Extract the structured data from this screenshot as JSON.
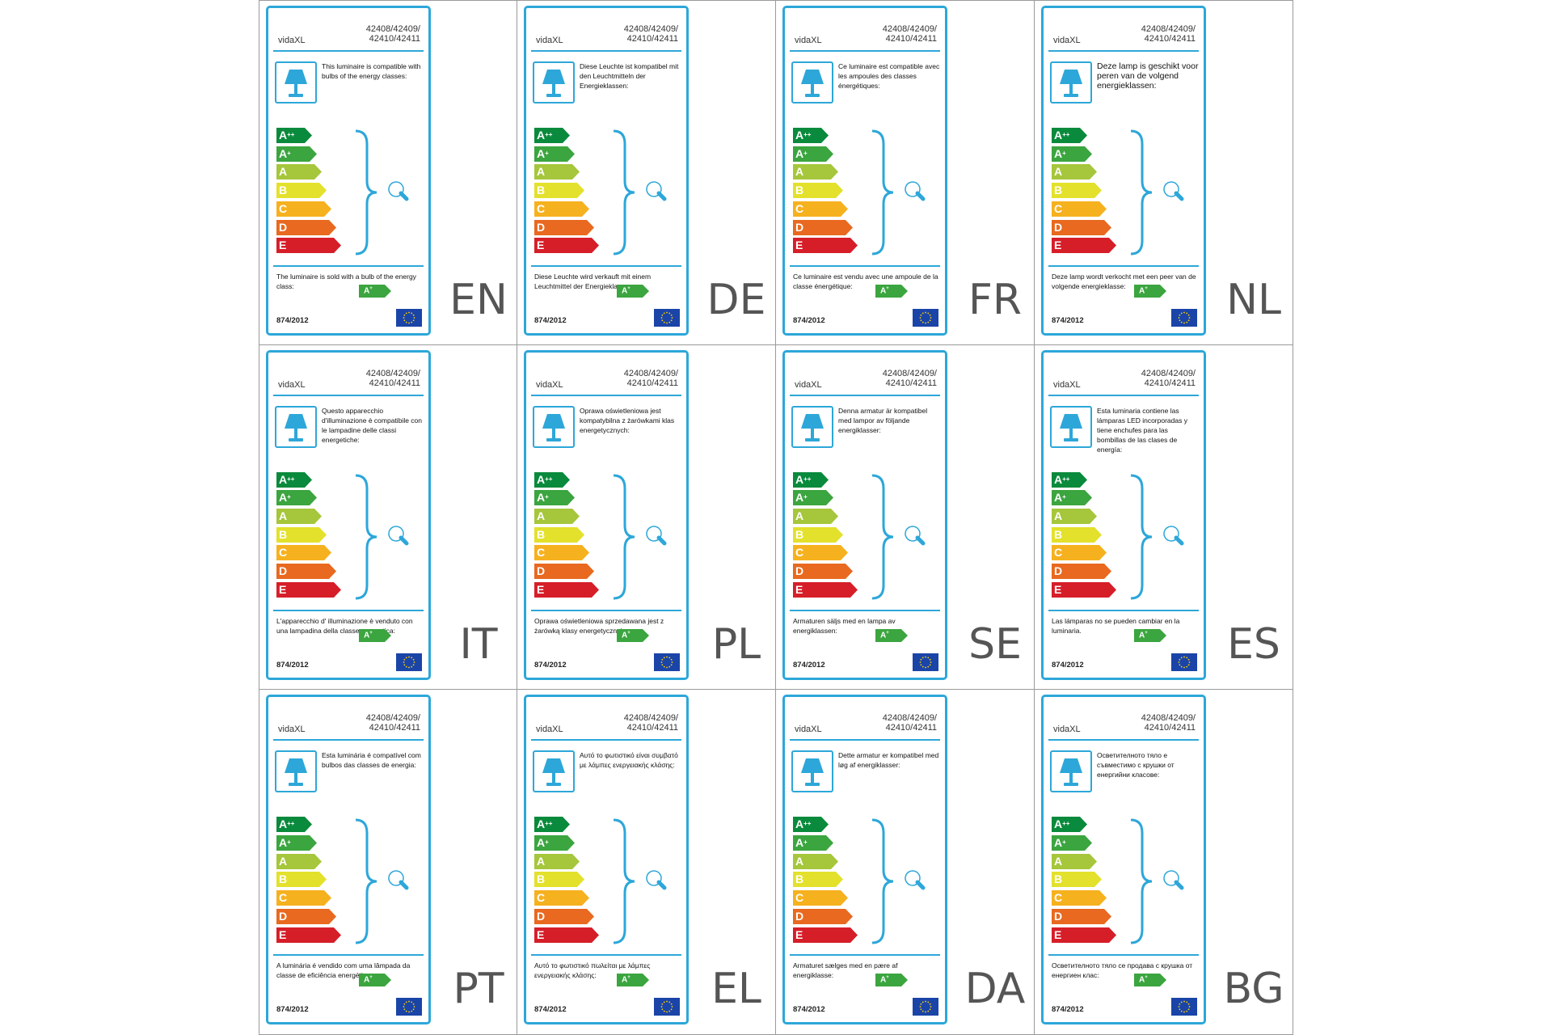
{
  "brand": "vidaXL",
  "models": [
    "42408/42409/",
    "42410/42411"
  ],
  "regulation": "874/2012",
  "colors": {
    "frame": "#2da7d9",
    "classes": [
      "#0a8a3c",
      "#3ba53f",
      "#a6c63b",
      "#e3e12b",
      "#f6b11f",
      "#e8691f",
      "#d61e29"
    ]
  },
  "classes": [
    {
      "letter": "A",
      "sup": "++"
    },
    {
      "letter": "A",
      "sup": "+"
    },
    {
      "letter": "A",
      "sup": ""
    },
    {
      "letter": "B",
      "sup": ""
    },
    {
      "letter": "C",
      "sup": ""
    },
    {
      "letter": "D",
      "sup": ""
    },
    {
      "letter": "E",
      "sup": ""
    }
  ],
  "sold_class": {
    "letter": "A",
    "sup": "+"
  },
  "icons": {
    "lamp": "table-lamp-icon",
    "bulb": "light-bulb-icon",
    "eu": "eu-flag-icon"
  },
  "labels": [
    {
      "lang": "EN",
      "compat": "This luminaire is compatible with bulbs of the energy classes:",
      "sold": "The luminaire is sold with a bulb of the energy class:"
    },
    {
      "lang": "DE",
      "compat": "Diese Leuchte ist kompatibel mit den Leuchtmitteln der Energieklassen:",
      "sold": "Diese Leuchte wird verkauft mit einem Leuchtmittel der Energieklasse:"
    },
    {
      "lang": "FR",
      "compat": "Ce luminaire est compatible avec les ampoules des classes énergétiques:",
      "sold": "Ce luminaire est vendu avec une ampoule de la classe énergétique:"
    },
    {
      "lang": "NL",
      "compat": "Deze lamp is geschikt voor peren van de volgend energieklassen:",
      "sold": "Deze lamp wordt verkocht met een peer van de volgende energieklasse:"
    },
    {
      "lang": "IT",
      "compat": "Questo apparecchio d'illuminazione è compatibile con le lampadine delle classi energetiche:",
      "sold": "L'apparecchio d' illuminazione è venduto con una lampadina della classe energetica:"
    },
    {
      "lang": "PL",
      "compat": "Oprawa oświetleniowa jest kompatybilna z żarówkami klas energetycznych:",
      "sold": "Oprawa oświetleniowa sprzedawana jest z żarówką klasy energetycznej:"
    },
    {
      "lang": "SE",
      "compat": "Denna armatur är kompatibel med lampor av följande energiklasser:",
      "sold": "Armaturen säljs med en lampa av energiklassen:"
    },
    {
      "lang": "ES",
      "compat": "Esta luminaria contiene las lámparas LED incorporadas y tiene enchufes para las bombillas de las clases de energía:",
      "sold": "Las lámparas no se pueden cambiar en la luminaria."
    },
    {
      "lang": "PT",
      "compat": "Esta luminária é compatível com bulbos das classes de energia:",
      "sold": "A luminária é vendido com uma lâmpada da classe de eficiência energética:"
    },
    {
      "lang": "EL",
      "compat": "Αυτό το φωτιστικό είναι συμβατό με λάμπες ενεργειακής κλάσης:",
      "sold": "Αυτό το φωτιστικό πωλείται με λάμπες ενεργειακής κλάσης:"
    },
    {
      "lang": "DA",
      "compat": "Dette armatur er kompatibel med løg af energiklasser:",
      "sold": "Armaturet sælges med en pære af energiklasse:"
    },
    {
      "lang": "BG",
      "compat": "Осветителното тяло е съвместимо с крушки от енергийни класове:",
      "sold": "Осветителното тяло се продава с крушка от енергиен клас:"
    }
  ]
}
